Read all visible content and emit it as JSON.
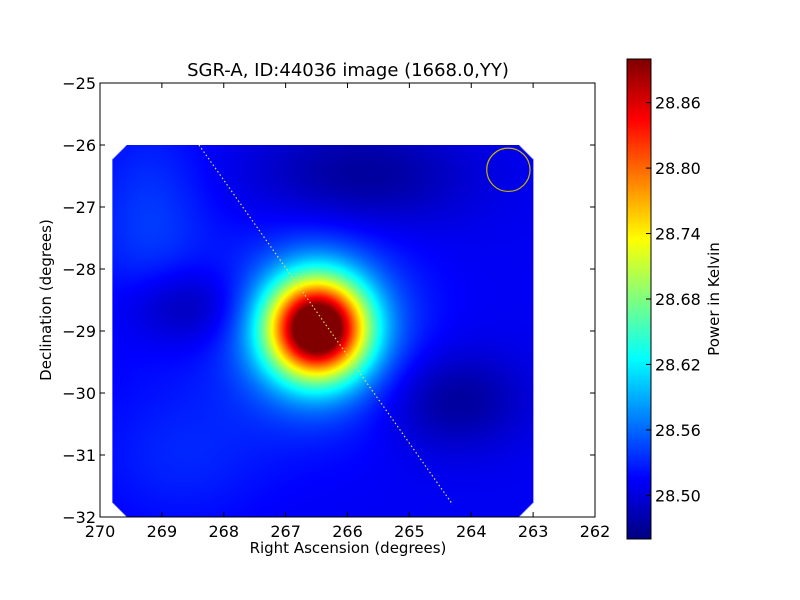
{
  "chart_data": {
    "type": "heatmap",
    "title": "SGR-A, ID:44036 image (1668.0,YY)",
    "xlabel": "Right Ascension (degrees)",
    "ylabel": "Declination (degrees)",
    "xlim": [
      270,
      262
    ],
    "ylim": [
      -32,
      -25
    ],
    "x_ticks": [
      270,
      269,
      268,
      267,
      266,
      265,
      264,
      263,
      262
    ],
    "y_ticks": [
      -25,
      -26,
      -27,
      -28,
      -29,
      -30,
      -31,
      -32
    ],
    "x_tick_labels": [
      "270",
      "269",
      "268",
      "267",
      "266",
      "265",
      "264",
      "263",
      "262"
    ],
    "y_tick_labels": [
      "−25",
      "−26",
      "−27",
      "−28",
      "−29",
      "−30",
      "−31",
      "−32"
    ],
    "grid": false,
    "colormap": "jet",
    "image_extent": {
      "ra": [
        269.8,
        263.0
      ],
      "dec": [
        -32.0,
        -26.0
      ]
    },
    "background_level": 28.51,
    "features": [
      {
        "ra": 266.5,
        "dec": -28.95,
        "amplitude": 0.4,
        "sigma_ra": 0.55,
        "sigma_dec": 0.55
      },
      {
        "ra": 266.5,
        "dec": -28.95,
        "amplitude": 0.08,
        "sigma_ra": 1.0,
        "sigma_dec": 1.0
      },
      {
        "ra": 268.6,
        "dec": -28.6,
        "amplitude": -0.04,
        "sigma_ra": 0.7,
        "sigma_dec": 0.45
      },
      {
        "ra": 264.3,
        "dec": -30.1,
        "amplitude": -0.04,
        "sigma_ra": 0.8,
        "sigma_dec": 0.55
      },
      {
        "ra": 265.8,
        "dec": -26.5,
        "amplitude": -0.04,
        "sigma_ra": 1.2,
        "sigma_dec": 0.6
      },
      {
        "ra": 269.2,
        "dec": -27.3,
        "amplitude": 0.03,
        "sigma_ra": 0.7,
        "sigma_dec": 1.2
      },
      {
        "ra": 268.7,
        "dec": -31.0,
        "amplitude": 0.02,
        "sigma_ra": 1.0,
        "sigma_dec": 0.8
      }
    ],
    "galactic_plane": {
      "from": {
        "ra": 268.4,
        "dec": -26.0
      },
      "to": {
        "ra": 264.3,
        "dec": -31.8
      },
      "color": "#dddd55"
    },
    "beam_circle": {
      "ra": 263.4,
      "dec": -26.4,
      "radius_deg": 0.35,
      "color": "#c8b400"
    },
    "colorbar": {
      "label": "Power in Kelvin",
      "vmin": 28.46,
      "vmax": 28.9,
      "ticks": [
        28.5,
        28.56,
        28.62,
        28.68,
        28.74,
        28.8,
        28.86
      ],
      "tick_labels": [
        "28.50",
        "28.56",
        "28.62",
        "28.68",
        "28.74",
        "28.80",
        "28.86"
      ]
    }
  }
}
